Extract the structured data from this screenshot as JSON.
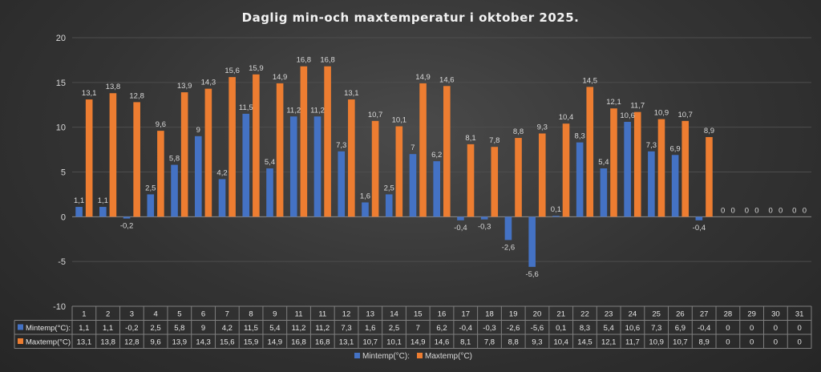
{
  "chart_data": {
    "type": "bar",
    "title": "Daglig min-och maxtemperatur i oktober 2025.",
    "ylim": [
      -10,
      20
    ],
    "yticks": [
      "-10",
      "-5",
      "0",
      "5",
      "10",
      "15",
      "20"
    ],
    "categories": [
      "1",
      "2",
      "3",
      "4",
      "5",
      "6",
      "7",
      "8",
      "9",
      "11",
      "11",
      "12",
      "13",
      "14",
      "15",
      "16",
      "17",
      "18",
      "19",
      "20",
      "21",
      "22",
      "23",
      "24",
      "25",
      "26",
      "27",
      "28",
      "29",
      "30",
      "31"
    ],
    "series": [
      {
        "name": "Mintemp(°C):",
        "table_name": "Mintemp(°C):",
        "color": "#4472c4",
        "values": [
          1.1,
          1.1,
          -0.2,
          2.5,
          5.8,
          9,
          4.2,
          11.5,
          5.4,
          11.2,
          11.2,
          7.3,
          1.6,
          2.5,
          7,
          6.2,
          -0.4,
          -0.3,
          -2.6,
          -5.6,
          0.1,
          8.3,
          5.4,
          10.6,
          7.3,
          6.9,
          -0.4,
          0,
          0,
          0,
          0
        ],
        "labels": [
          "1,1",
          "1,1",
          "-0,2",
          "2,5",
          "5,8",
          "9",
          "4,2",
          "11,5",
          "5,4",
          "11,2",
          "11,2",
          "7,3",
          "1,6",
          "2,5",
          "7",
          "6,2",
          "-0,4",
          "-0,3",
          "-2,6",
          "-5,6",
          "0,1",
          "8,3",
          "5,4",
          "10,6",
          "7,3",
          "6,9",
          "-0,4",
          "0",
          "0",
          "0",
          "0"
        ]
      },
      {
        "name": "Maxtemp(°C)",
        "table_name": "Maxtemp(°C)",
        "color": "#ed7d31",
        "values": [
          13.1,
          13.8,
          12.8,
          9.6,
          13.9,
          14.3,
          15.6,
          15.9,
          14.9,
          16.8,
          16.8,
          13.1,
          10.7,
          10.1,
          14.9,
          14.6,
          8.1,
          7.8,
          8.8,
          9.3,
          10.4,
          14.5,
          12.1,
          11.7,
          10.9,
          10.7,
          8.9,
          0,
          0,
          0,
          0
        ],
        "labels": [
          "13,1",
          "13,8",
          "12,8",
          "9,6",
          "13,9",
          "14,3",
          "15,6",
          "15,9",
          "14,9",
          "16,8",
          "16,8",
          "13,1",
          "10,7",
          "10,1",
          "14,9",
          "14,6",
          "8,1",
          "7,8",
          "8,8",
          "9,3",
          "10,4",
          "14,5",
          "12,1",
          "11,7",
          "10,9",
          "10,7",
          "8,9",
          "0",
          "0",
          "0",
          "0"
        ]
      }
    ],
    "grid": true,
    "legend": "bottom-center",
    "data_table": true
  }
}
